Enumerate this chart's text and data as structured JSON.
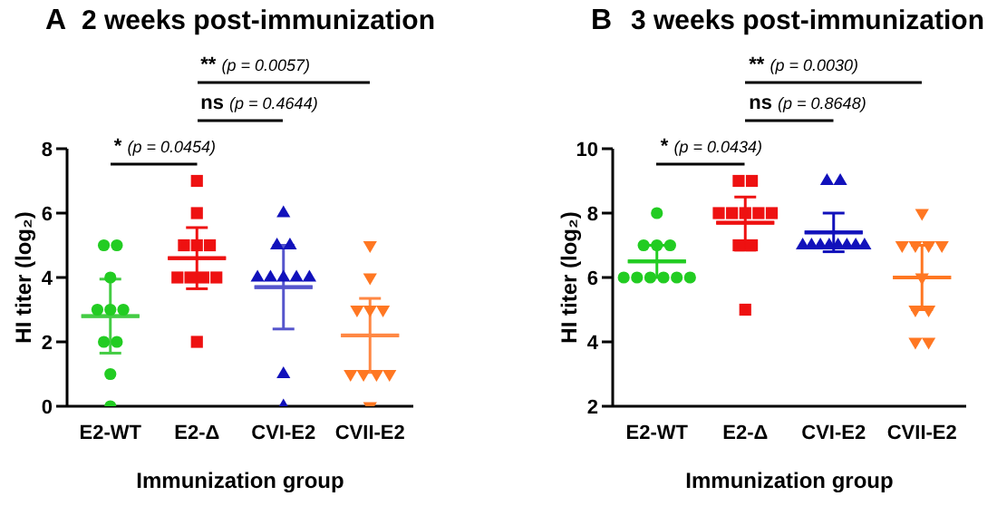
{
  "chart_data": [
    {
      "type": "scatter",
      "title": "2 weeks  post-immunization",
      "xlabel": "Immunization group",
      "ylabel": "HI titer (log₂)",
      "categories": [
        "E2-WT",
        "E2-Δ",
        "CVI-E2",
        "CVII-E2"
      ],
      "ylim": [
        0,
        8
      ],
      "yticks": [
        0,
        2,
        4,
        6,
        8
      ],
      "grid": false,
      "legend": false,
      "annotations": [
        "A",
        "* (p = 0.0454)",
        "ns (p = 0.4644)",
        "** (p = 0.0057)"
      ],
      "series": [
        {
          "color": "#22cc22",
          "marker": "circle",
          "x": [
            "E2-WT",
            "E2-WT",
            "E2-WT",
            "E2-WT",
            "E2-WT",
            "E2-WT",
            "E2-WT",
            "E2-WT",
            "E2-WT",
            "E2-WT"
          ],
          "values": [
            5,
            5,
            4,
            3,
            3,
            3,
            2,
            2,
            1,
            0
          ]
        },
        {
          "color": "#ee1111",
          "marker": "square",
          "x": [
            "E2-Δ",
            "E2-Δ",
            "E2-Δ",
            "E2-Δ",
            "E2-Δ",
            "E2-Δ",
            "E2-Δ",
            "E2-Δ",
            "E2-Δ",
            "E2-Δ"
          ],
          "values": [
            7,
            6,
            5,
            5,
            5,
            4,
            4,
            4,
            4,
            2
          ]
        },
        {
          "color": "#1111bb",
          "marker": "triangle",
          "x": [
            "CVI-E2",
            "CVI-E2",
            "CVI-E2",
            "CVI-E2",
            "CVI-E2",
            "CVI-E2",
            "CVI-E2",
            "CVI-E2",
            "CVI-E2",
            "CVI-E2"
          ],
          "values": [
            6,
            5,
            5,
            4,
            4,
            4,
            4,
            4,
            1,
            0
          ]
        },
        {
          "color": "#ff7722",
          "marker": "triangle-down",
          "x": [
            "CVII-E2",
            "CVII-E2",
            "CVII-E2",
            "CVII-E2",
            "CVII-E2",
            "CVII-E2",
            "CVII-E2",
            "CVII-E2",
            "CVII-E2",
            "CVII-E2"
          ],
          "values": [
            5,
            4,
            3,
            3,
            3,
            1,
            1,
            1,
            1,
            0
          ]
        },
        {
          "type": "box",
          "colors": [
            "#44cc44",
            "#ee1111",
            "#5555cc",
            "#ff8844"
          ],
          "boxes": [
            {
              "low": 1.65,
              "q1": 2.8,
              "median": 2.8,
              "q3": 2.8,
              "high": 3.95
            },
            {
              "low": 3.65,
              "q1": 4.6,
              "median": 4.6,
              "q3": 4.6,
              "high": 5.55
            },
            {
              "low": 2.4,
              "q1": 3.7,
              "median": 3.7,
              "q3": 3.7,
              "high": 5.0
            },
            {
              "low": 1.05,
              "q1": 2.2,
              "median": 2.2,
              "q3": 2.2,
              "high": 3.35
            }
          ]
        }
      ]
    },
    {
      "type": "scatter",
      "title": "3 weeks  post-immunization",
      "xlabel": "Immunization group",
      "ylabel": "HI titer (log₂)",
      "categories": [
        "E2-WT",
        "E2-Δ",
        "CVI-E2",
        "CVII-E2"
      ],
      "ylim": [
        2,
        10
      ],
      "yticks": [
        2,
        4,
        6,
        8,
        10
      ],
      "grid": false,
      "legend": false,
      "annotations": [
        "B",
        "* (p = 0.0434)",
        "ns (p = 0.8648)",
        "** (p = 0.0030)"
      ],
      "series": [
        {
          "color": "#22cc22",
          "marker": "circle",
          "x": [
            "E2-WT",
            "E2-WT",
            "E2-WT",
            "E2-WT",
            "E2-WT",
            "E2-WT",
            "E2-WT",
            "E2-WT",
            "E2-WT",
            "E2-WT"
          ],
          "values": [
            8,
            7,
            7,
            7,
            6,
            6,
            6,
            6,
            6,
            6
          ]
        },
        {
          "color": "#ee1111",
          "marker": "square",
          "x": [
            "E2-Δ",
            "E2-Δ",
            "E2-Δ",
            "E2-Δ",
            "E2-Δ",
            "E2-Δ",
            "E2-Δ",
            "E2-Δ",
            "E2-Δ",
            "E2-Δ"
          ],
          "values": [
            9,
            9,
            8,
            8,
            8,
            8,
            8,
            7,
            7,
            5
          ]
        },
        {
          "color": "#1111bb",
          "marker": "triangle",
          "x": [
            "CVI-E2",
            "CVI-E2",
            "CVI-E2",
            "CVI-E2",
            "CVI-E2",
            "CVI-E2",
            "CVI-E2",
            "CVI-E2",
            "CVI-E2",
            "CVI-E2"
          ],
          "values": [
            9,
            9,
            7,
            7,
            7,
            7,
            7,
            7,
            7,
            7
          ]
        },
        {
          "color": "#ff7722",
          "marker": "triangle-down",
          "x": [
            "CVII-E2",
            "CVII-E2",
            "CVII-E2",
            "CVII-E2",
            "CVII-E2",
            "CVII-E2",
            "CVII-E2",
            "CVII-E2",
            "CVII-E2",
            "CVII-E2"
          ],
          "values": [
            8,
            7,
            7,
            7,
            7,
            6,
            5,
            5,
            4,
            4
          ]
        },
        {
          "type": "box",
          "colors": [
            "#22cc22",
            "#ee1111",
            "#1111bb",
            "#ff7722"
          ],
          "boxes": [
            {
              "low": 6.0,
              "q1": 6.5,
              "median": 6.5,
              "q3": 6.5,
              "high": 7.0
            },
            {
              "low": 6.85,
              "q1": 7.7,
              "median": 7.7,
              "q3": 7.7,
              "high": 8.5
            },
            {
              "low": 6.8,
              "q1": 7.4,
              "median": 7.4,
              "q3": 7.4,
              "high": 8.0
            },
            {
              "low": 5.0,
              "q1": 6.0,
              "median": 6.0,
              "q3": 6.0,
              "high": 7.0
            }
          ]
        }
      ]
    }
  ]
}
